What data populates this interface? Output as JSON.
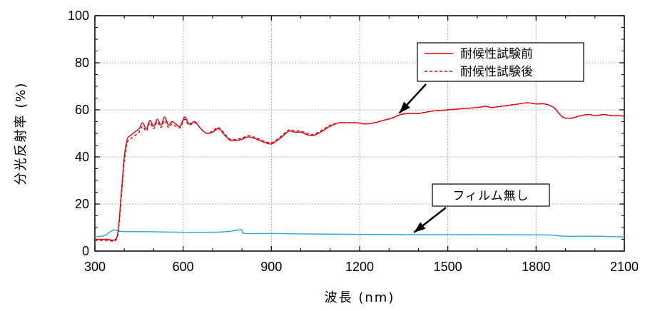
{
  "chart_data": {
    "type": "line",
    "xlabel": "波長 (nm)",
    "ylabel": "分光反射率 (%)",
    "xlim": [
      300,
      2100
    ],
    "ylim": [
      0,
      100
    ],
    "xticks": [
      300,
      600,
      900,
      1200,
      1500,
      1800,
      2100
    ],
    "yticks": [
      0,
      20,
      40,
      60,
      80,
      100
    ],
    "grid": true,
    "legend_position": "top-right",
    "series": [
      {
        "name": "耐候性試験前",
        "color": "#e8000b",
        "style": "solid",
        "x": [
          300,
          340,
          370,
          380,
          390,
          400,
          410,
          420,
          435,
          450,
          462,
          475,
          487,
          500,
          512,
          525,
          537,
          550,
          562,
          575,
          590,
          605,
          620,
          640,
          660,
          680,
          700,
          720,
          740,
          760,
          780,
          800,
          820,
          840,
          860,
          880,
          900,
          920,
          940,
          960,
          980,
          1000,
          1020,
          1040,
          1060,
          1080,
          1100,
          1130,
          1160,
          1190,
          1220,
          1250,
          1280,
          1310,
          1340,
          1370,
          1400,
          1450,
          1500,
          1550,
          1600,
          1630,
          1650,
          1680,
          1710,
          1740,
          1770,
          1800,
          1830,
          1860,
          1890,
          1920,
          1950,
          1980,
          2000,
          2030,
          2060,
          2090,
          2100
        ],
        "values": [
          5,
          5,
          5,
          10,
          25,
          40,
          47.5,
          49,
          50.5,
          52,
          54.5,
          52,
          55.5,
          53,
          56,
          53.5,
          57,
          53.5,
          55,
          54,
          53,
          57,
          54,
          55,
          52,
          50,
          50.5,
          52,
          49.5,
          47,
          47,
          47.5,
          48.5,
          48,
          47,
          46,
          45.5,
          47,
          49,
          51,
          50.5,
          50.5,
          49.5,
          49,
          50,
          51.5,
          53,
          54.5,
          54.5,
          54.5,
          54,
          54.5,
          55.5,
          56.5,
          58,
          58.5,
          58.5,
          59.5,
          60,
          60.5,
          61,
          61.5,
          61,
          61.5,
          62,
          62.5,
          63,
          62.5,
          62.5,
          61,
          57,
          56.5,
          57.5,
          58,
          57.5,
          58,
          57.5,
          57.5,
          57
        ]
      },
      {
        "name": "耐候性試験後",
        "color": "#e8000b",
        "style": "dashed",
        "x": [
          300,
          340,
          370,
          380,
          390,
          400,
          410,
          420,
          435,
          450,
          462,
          475,
          487,
          500,
          512,
          525,
          537,
          550,
          562,
          575,
          590,
          605,
          620,
          640,
          660,
          680,
          700,
          720,
          740,
          760,
          780,
          800,
          820,
          840,
          860,
          880,
          900,
          920,
          940,
          960,
          980,
          1000,
          1020,
          1040,
          1060,
          1080,
          1100,
          1130,
          1160,
          1190,
          1220,
          1250,
          1280,
          1310,
          1340,
          1370,
          1400,
          1450,
          1500,
          1550,
          1600,
          1630,
          1650,
          1680,
          1710,
          1740,
          1770,
          1800,
          1830,
          1860,
          1890,
          1920,
          1950,
          1980,
          2000,
          2030,
          2060,
          2090,
          2100
        ],
        "values": [
          4.5,
          4.5,
          4.5,
          9,
          23,
          38,
          46,
          47.5,
          49,
          50.5,
          53,
          51,
          54.5,
          52,
          55,
          52.5,
          55.5,
          52.5,
          54,
          53,
          52.5,
          56,
          53.5,
          54.5,
          52,
          50,
          51,
          52.5,
          50,
          47.5,
          47.5,
          48,
          49,
          48.5,
          47.5,
          46.5,
          46,
          47.5,
          49.5,
          51.5,
          51,
          51,
          50,
          49.5,
          50.5,
          52,
          53.5,
          54.5,
          54.5,
          54.5,
          54,
          54.5,
          55.5,
          56.5,
          58,
          58.5,
          58.5,
          59.5,
          60,
          60.5,
          61,
          61.5,
          61,
          61.5,
          62,
          62.5,
          63,
          62.5,
          62.5,
          61,
          57,
          56.5,
          57.5,
          58,
          57.5,
          58,
          57.5,
          57.5,
          57
        ]
      },
      {
        "name": "フィルム無し",
        "color": "#2aa7e0",
        "style": "solid",
        "x": [
          300,
          330,
          350,
          365,
          380,
          400,
          500,
          600,
          700,
          750,
          780,
          790,
          800,
          810,
          900,
          1000,
          1200,
          1400,
          1600,
          1800,
          1850,
          1900,
          2000,
          2100
        ],
        "values": [
          6,
          6.5,
          8,
          9,
          8.5,
          8.3,
          8.2,
          8,
          8,
          8.3,
          8.8,
          9,
          9,
          7.5,
          7.5,
          7.3,
          7.1,
          7,
          7,
          6.9,
          6.8,
          6.3,
          6.3,
          6
        ]
      }
    ],
    "annotations": [
      {
        "text": "フィルム無し",
        "points_to": [
          1380,
          7
        ]
      }
    ]
  }
}
